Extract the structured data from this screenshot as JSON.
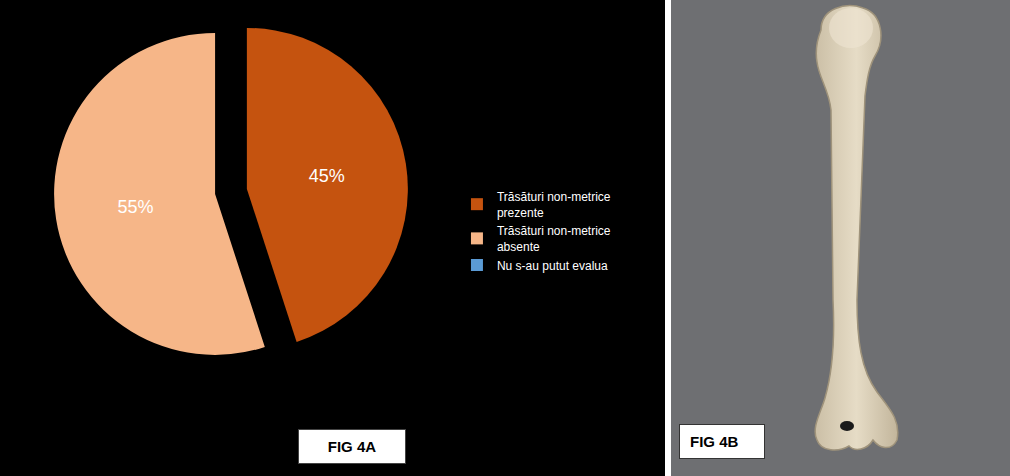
{
  "chart_data": {
    "type": "pie",
    "title": "FIG 4A",
    "categories": [
      "Trăsături non-metrice prezente",
      "Trăsături non-metrice absente",
      "Nu s-au putut evalua"
    ],
    "values": [
      45,
      55,
      0
    ],
    "value_labels": [
      "45%",
      "55%",
      null
    ],
    "colors": [
      "#c5530f",
      "#f6b688",
      "#5b9bd5"
    ],
    "legend": "right",
    "data_labels": true
  },
  "photo": {
    "label": "FIG 4B"
  }
}
